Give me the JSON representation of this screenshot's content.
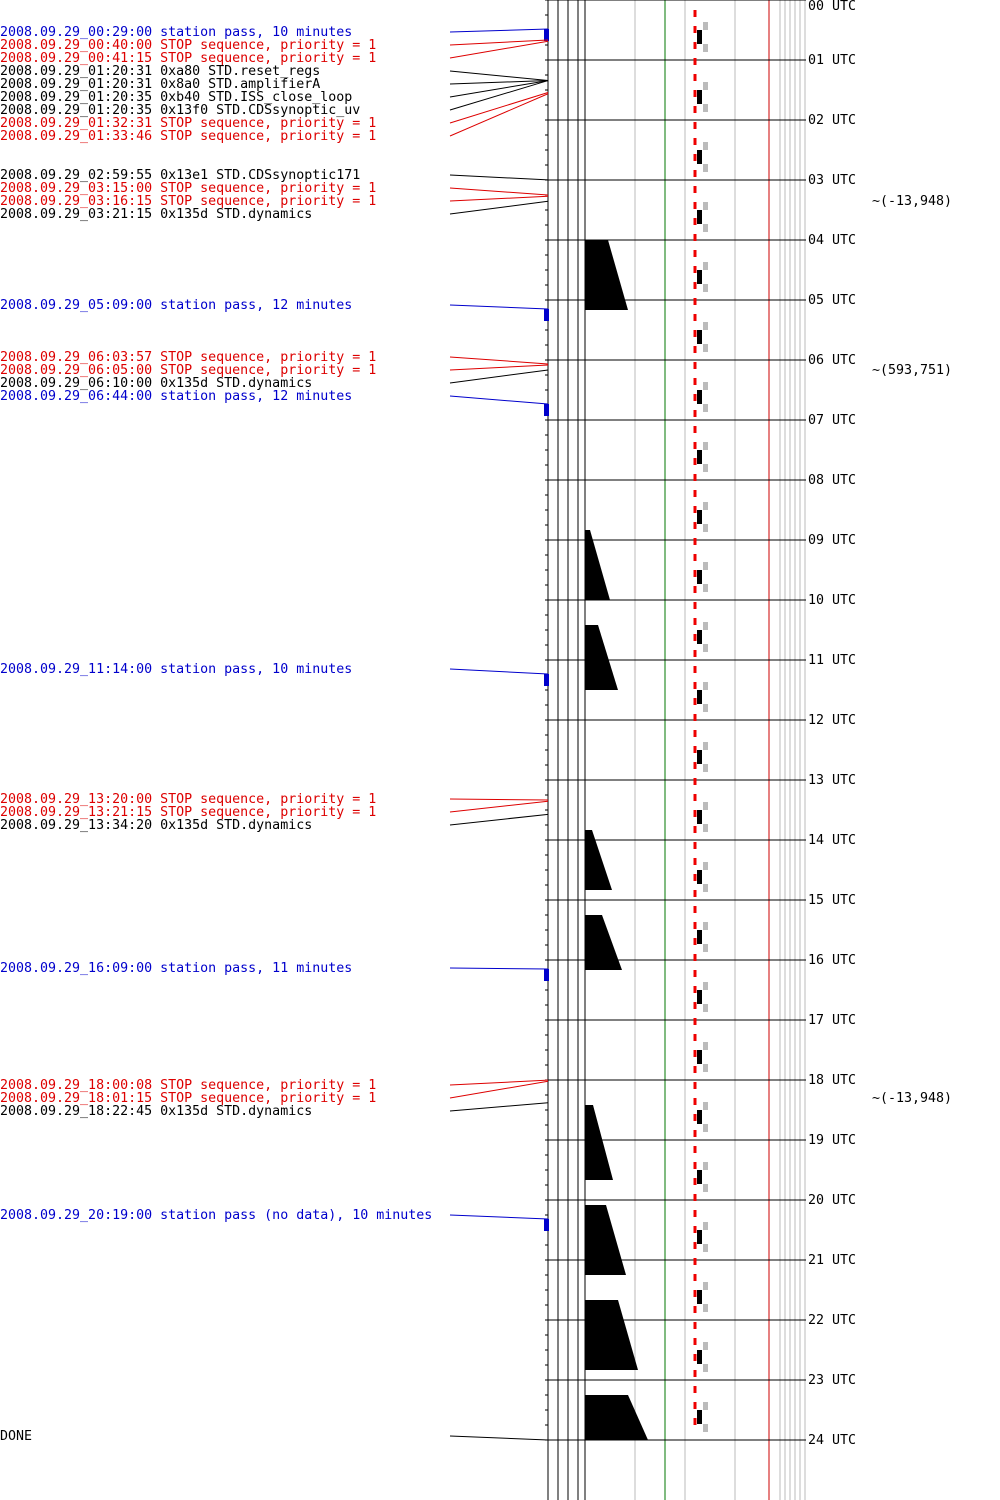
{
  "events": [
    {
      "label": "2008.09.29_00:29:00 station pass, 10 minutes",
      "color": "#0000cc"
    },
    {
      "label": "2008.09.29_00:40:00 STOP sequence, priority = 1",
      "color": "#dd0000"
    },
    {
      "label": "2008.09.29_00:41:15 STOP sequence, priority = 1",
      "color": "#dd0000"
    },
    {
      "label": "2008.09.29_01:20:31  0xa80 STD.reset_regs",
      "color": "#000000"
    },
    {
      "label": "2008.09.29_01:20:31  0x8a0 STD.amplifierA",
      "color": "#000000"
    },
    {
      "label": "2008.09.29_01:20:35  0xb40 STD.ISS_close_loop",
      "color": "#000000"
    },
    {
      "label": "2008.09.29_01:20:35 0x13f0 STD.CDSsynoptic_uv",
      "color": "#000000"
    },
    {
      "label": "2008.09.29_01:32:31 STOP sequence, priority = 1",
      "color": "#dd0000"
    },
    {
      "label": "2008.09.29_01:33:46 STOP sequence, priority = 1",
      "color": "#dd0000"
    },
    {
      "label": "2008.09.29_02:59:55 0x13e1 STD.CDSsynoptic171",
      "color": "#000000"
    },
    {
      "label": "2008.09.29_03:15:00 STOP sequence, priority = 1",
      "color": "#dd0000"
    },
    {
      "label": "2008.09.29_03:16:15 STOP sequence, priority = 1",
      "color": "#dd0000"
    },
    {
      "label": "2008.09.29_03:21:15 0x135d STD.dynamics",
      "color": "#000000"
    },
    {
      "label": "2008.09.29_05:09:00 station pass, 12 minutes",
      "color": "#0000cc"
    },
    {
      "label": "2008.09.29_06:03:57 STOP sequence, priority = 1",
      "color": "#dd0000"
    },
    {
      "label": "2008.09.29_06:05:00 STOP sequence, priority = 1",
      "color": "#dd0000"
    },
    {
      "label": "2008.09.29_06:10:00 0x135d STD.dynamics",
      "color": "#000000"
    },
    {
      "label": "2008.09.29_06:44:00 station pass, 12 minutes",
      "color": "#0000cc"
    },
    {
      "label": "2008.09.29_11:14:00 station pass, 10 minutes",
      "color": "#0000cc"
    },
    {
      "label": "2008.09.29_13:20:00 STOP sequence, priority = 1",
      "color": "#dd0000"
    },
    {
      "label": "2008.09.29_13:21:15 STOP sequence, priority = 1",
      "color": "#dd0000"
    },
    {
      "label": "2008.09.29_13:34:20 0x135d STD.dynamics",
      "color": "#000000"
    },
    {
      "label": "2008.09.29_16:09:00 station pass, 11 minutes",
      "color": "#0000cc"
    },
    {
      "label": "2008.09.29_18:00:08 STOP sequence, priority = 1",
      "color": "#dd0000"
    },
    {
      "label": "2008.09.29_18:01:15 STOP sequence, priority = 1",
      "color": "#dd0000"
    },
    {
      "label": "2008.09.29_18:22:45 0x135d STD.dynamics",
      "color": "#000000"
    },
    {
      "label": "2008.09.29_20:19:00 station pass (no data), 10 minutes",
      "color": "#0000cc"
    },
    {
      "label": "DONE",
      "color": "#000000"
    }
  ],
  "hours": [
    "00 UTC",
    "01 UTC",
    "02 UTC",
    "03 UTC",
    "04 UTC",
    "05 UTC",
    "06 UTC",
    "07 UTC",
    "08 UTC",
    "09 UTC",
    "10 UTC",
    "11 UTC",
    "12 UTC",
    "13 UTC",
    "14 UTC",
    "15 UTC",
    "16 UTC",
    "17 UTC",
    "18 UTC",
    "19 UTC",
    "20 UTC",
    "21 UTC",
    "22 UTC",
    "23 UTC",
    "24 UTC"
  ],
  "annotations": [
    "~(-13,948)",
    "~(593,751)",
    "~(-13,948)"
  ]
}
